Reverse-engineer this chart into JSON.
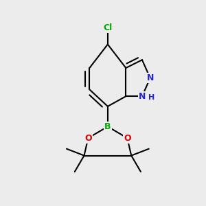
{
  "background_color": "#ececec",
  "bond_color": "#000000",
  "bond_width": 1.5,
  "atom_colors": {
    "Cl": "#00aa00",
    "B": "#00aa00",
    "O": "#dd0000",
    "N": "#2222dd"
  }
}
